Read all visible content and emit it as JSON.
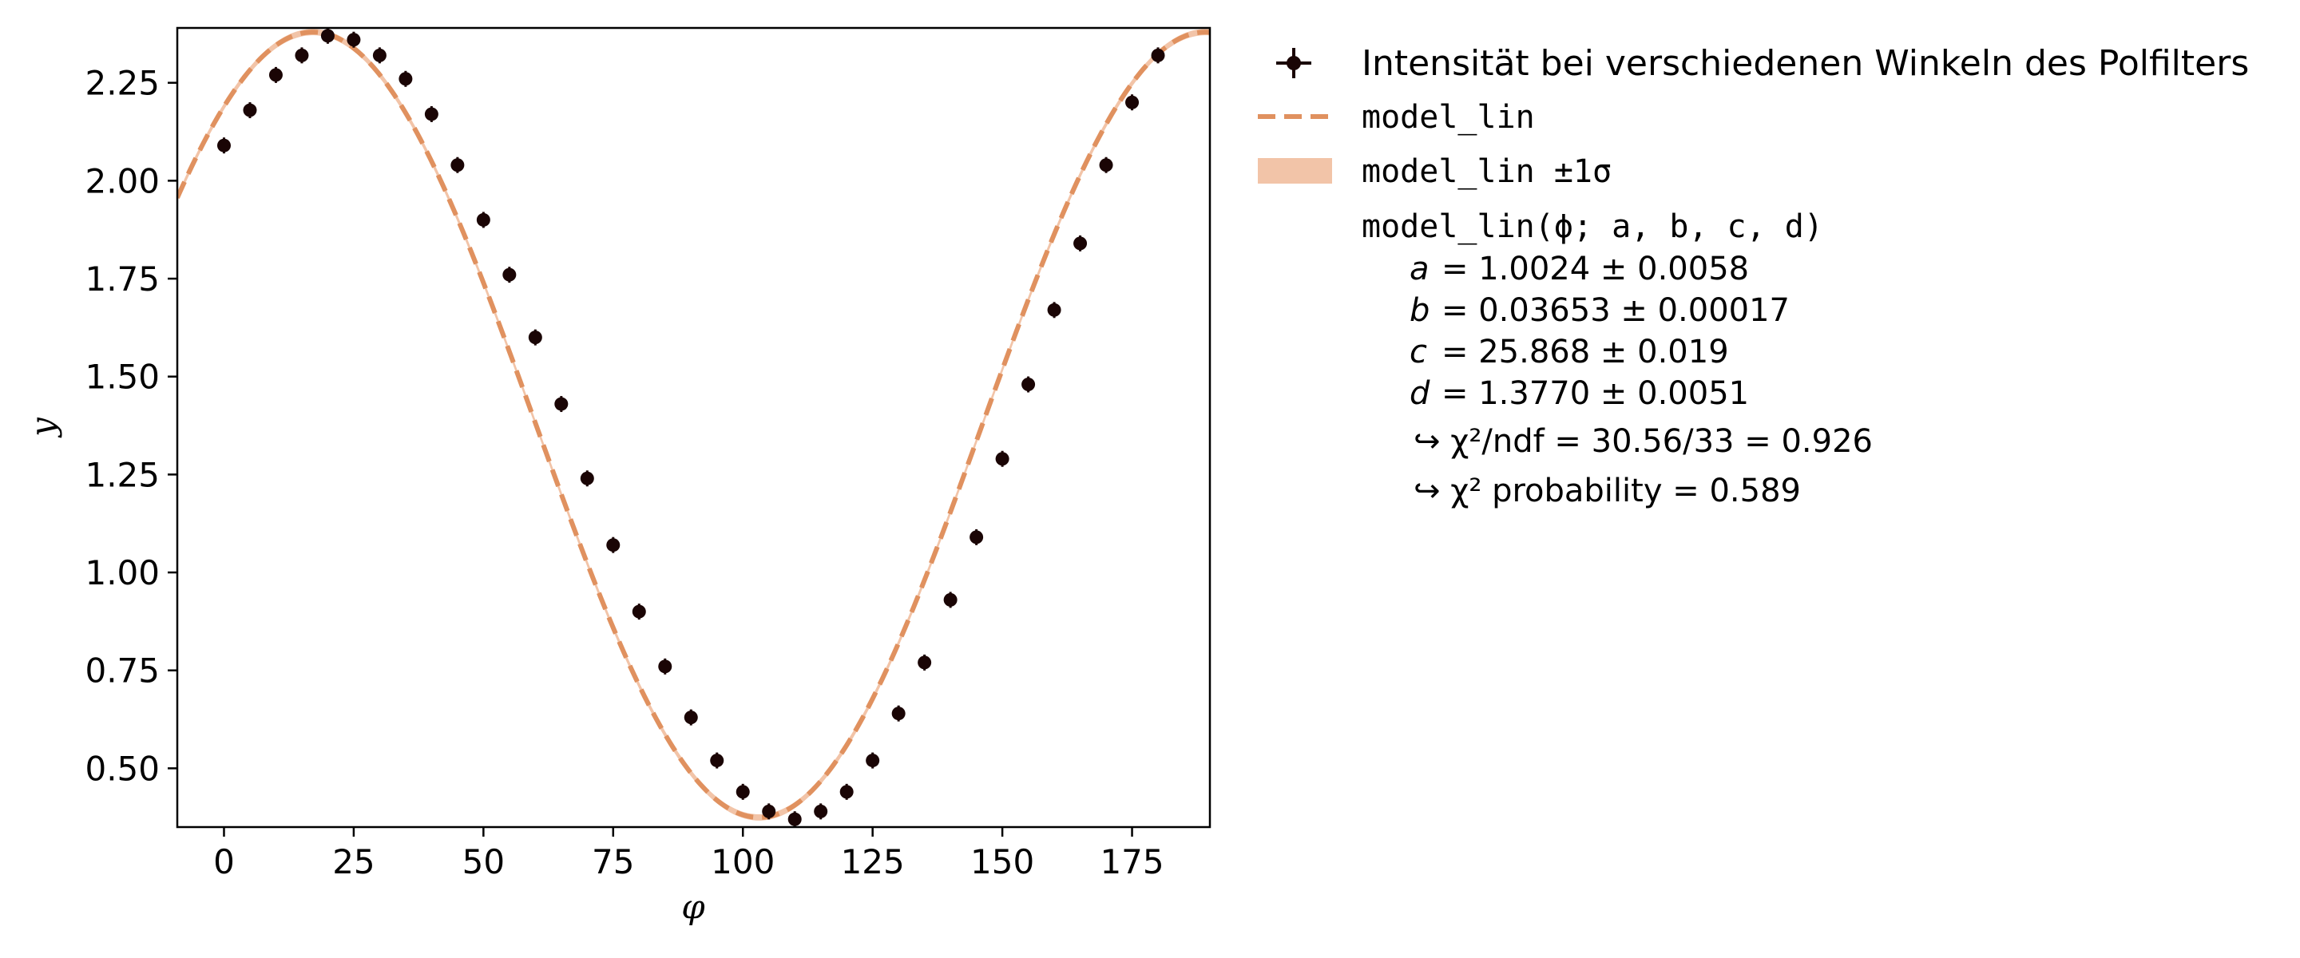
{
  "chart_data": {
    "type": "scatter",
    "xlabel": "φ",
    "ylabel": "y",
    "xlim": [
      -9,
      190
    ],
    "ylim": [
      0.35,
      2.39
    ],
    "xticks": [
      0,
      25,
      50,
      75,
      100,
      125,
      150,
      175
    ],
    "yticks": [
      0.5,
      0.75,
      1.0,
      1.25,
      1.5,
      1.75,
      2.0,
      2.25
    ],
    "xtick_labels": [
      "0",
      "25",
      "50",
      "75",
      "100",
      "125",
      "150",
      "175"
    ],
    "ytick_labels": [
      "0.50",
      "0.75",
      "1.00",
      "1.25",
      "1.50",
      "1.75",
      "2.00",
      "2.25"
    ],
    "grid": false,
    "legend_position": "outside-right",
    "series": [
      {
        "name": "Intensität bei verschiedenen Winkeln des Polfilters",
        "kind": "errorbar",
        "color": "#1a0505",
        "x": [
          0,
          5,
          10,
          15,
          20,
          25,
          30,
          35,
          40,
          45,
          50,
          55,
          60,
          65,
          70,
          75,
          80,
          85,
          90,
          95,
          100,
          105,
          110,
          115,
          120,
          125,
          130,
          135,
          140,
          145,
          150,
          155,
          160,
          165,
          170,
          175,
          180
        ],
        "y": [
          2.09,
          2.18,
          2.27,
          2.32,
          2.37,
          2.36,
          2.32,
          2.26,
          2.17,
          2.04,
          1.9,
          1.76,
          1.6,
          1.43,
          1.24,
          1.07,
          0.9,
          0.76,
          0.63,
          0.52,
          0.44,
          0.39,
          0.37,
          0.39,
          0.44,
          0.52,
          0.64,
          0.77,
          0.93,
          1.09,
          1.29,
          1.48,
          1.67,
          1.84,
          2.04,
          2.2,
          2.32
        ]
      },
      {
        "name": "model_lin",
        "kind": "model",
        "color": "#e0915f",
        "band_label": "model_lin ±1σ",
        "band_color": "#f2c4a8",
        "params": {
          "a": 1.0024,
          "b": 0.03653,
          "c": 25.868,
          "d": 1.377
        }
      }
    ],
    "fit_info": {
      "signature": "model_lin(ϕ; a, b, c, d)",
      "params": [
        {
          "name": "a",
          "value": "= 1.0024 ± 0.0058"
        },
        {
          "name": "b",
          "value": "= 0.03653 ± 0.00017"
        },
        {
          "name": "c",
          "value": "= 25.868 ± 0.019"
        },
        {
          "name": "d",
          "value": "= 1.3770 ± 0.0051"
        }
      ],
      "chi2_ndf": "↪ χ²/ndf = 30.56/33 = 0.926",
      "chi2_prob": "↪ χ² probability = 0.589"
    }
  }
}
